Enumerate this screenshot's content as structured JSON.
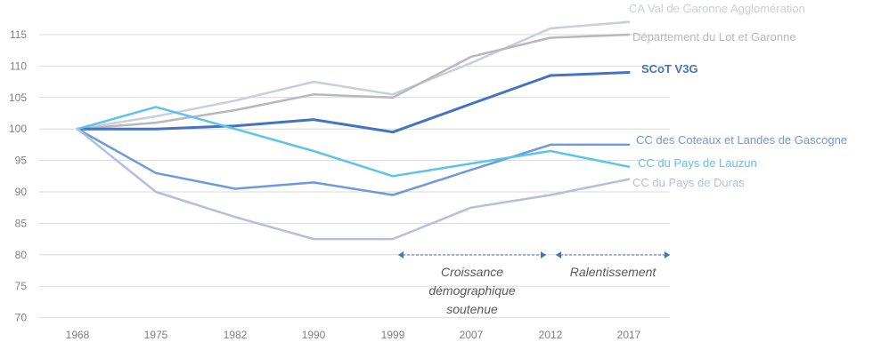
{
  "chart_data": {
    "type": "line",
    "title": "",
    "xlabel": "",
    "ylabel": "",
    "x": [
      "1968",
      "1975",
      "1982",
      "1990",
      "1999",
      "2007",
      "2012",
      "2017"
    ],
    "ylim": [
      70,
      118
    ],
    "yticks": [
      70,
      75,
      80,
      85,
      90,
      95,
      100,
      105,
      110,
      115
    ],
    "grid": true,
    "legend": "inline-right",
    "series": [
      {
        "name": "CA Val de Garonne Agglomération",
        "color": "#c9cede",
        "bold": false,
        "values": [
          100,
          102,
          104.5,
          107.5,
          105.5,
          110.5,
          116,
          117
        ]
      },
      {
        "name": "Département du Lot et Garonne",
        "color": "#b8b8b8",
        "bold": false,
        "values": [
          100,
          101,
          103,
          105.5,
          105,
          111.5,
          114.5,
          115
        ]
      },
      {
        "name": "SCoT V3G",
        "color": "#4472c4",
        "bold": true,
        "values": [
          100,
          100,
          100.5,
          101.5,
          99.5,
          104,
          108.5,
          109
        ]
      },
      {
        "name": "CC des Coteaux et Landes de Gascogne",
        "color": "#6f98e0",
        "bold": false,
        "values": [
          100,
          93,
          90.5,
          91.5,
          89.5,
          93.5,
          97.5,
          97.5
        ]
      },
      {
        "name": "CC du Pays de Lauzun",
        "color": "#5bc4ec",
        "bold": false,
        "values": [
          100,
          103.5,
          100,
          96.5,
          92.5,
          94.5,
          96.5,
          94
        ]
      },
      {
        "name": "CC du Pays de Duras",
        "color": "#b4bfdc",
        "bold": false,
        "values": [
          100,
          90,
          86,
          82.5,
          82.5,
          87.5,
          89.5,
          92
        ]
      }
    ],
    "annotations": [
      {
        "lines": [
          "Croissance",
          "démographique",
          "soutenue"
        ],
        "from": "1999",
        "to": "2012"
      },
      {
        "lines": [
          "Ralentissement"
        ],
        "from": "2012",
        "to": "2017"
      }
    ],
    "arrow_color": "#4472c4"
  }
}
